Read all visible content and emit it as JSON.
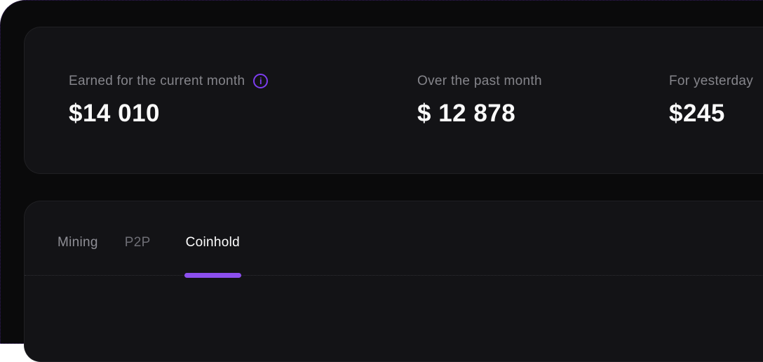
{
  "colors": {
    "accent_purple": "#7d3df0",
    "tab_indicator_purple": "#8c4fee"
  },
  "icons": {
    "info": "i"
  },
  "summary_card": {
    "stats": [
      {
        "label": "Earned for the current month",
        "value": "$14 010"
      },
      {
        "label": "Over the past month",
        "value": "$ 12 878"
      },
      {
        "label": "For yesterday",
        "value": "$245"
      }
    ]
  },
  "tabs_card": {
    "tabs": [
      {
        "label": "Mining",
        "active": false
      },
      {
        "label": "P2P",
        "active": false
      },
      {
        "label": "Coinhold",
        "active": true
      }
    ]
  }
}
